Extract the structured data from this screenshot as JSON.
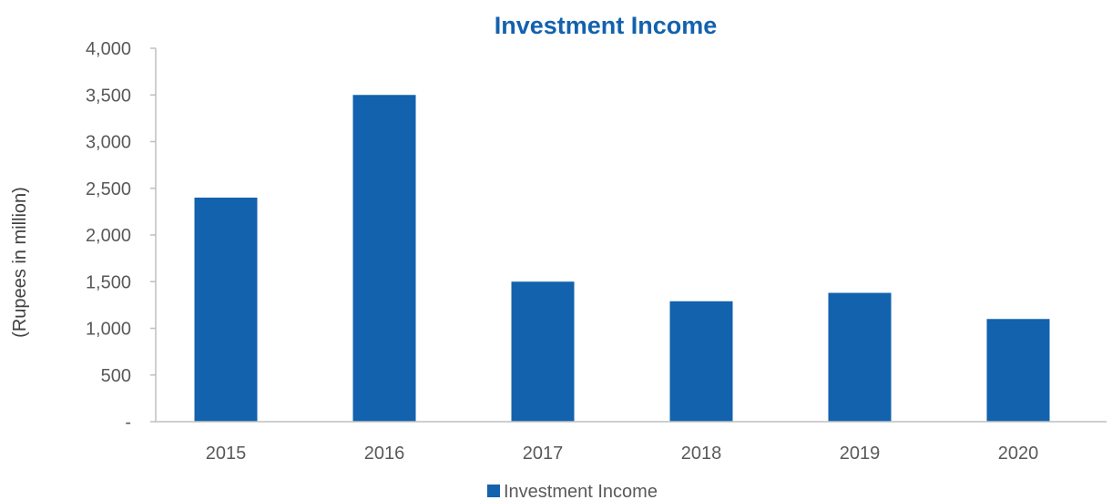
{
  "chart_data": {
    "type": "bar",
    "title": "Investment Income",
    "xlabel": "",
    "ylabel": "(Rupees in million)",
    "categories": [
      "2015",
      "2016",
      "2017",
      "2018",
      "2019",
      "2020"
    ],
    "series": [
      {
        "name": "Investment Income",
        "values": [
          2400,
          3500,
          1500,
          1290,
          1380,
          1100
        ],
        "color": "#1262AE"
      }
    ],
    "ylim": [
      0,
      4000
    ],
    "yticks": [
      0,
      500,
      1000,
      1500,
      2000,
      2500,
      3000,
      3500,
      4000
    ],
    "ytick_labels": [
      "-",
      "500",
      "1,000",
      "1,500",
      "2,000",
      "2,500",
      "3,000",
      "3,500",
      "4,000"
    ],
    "grid": false,
    "legend_position": "bottom",
    "colors": {
      "title": "#1262AE",
      "axis": "#BFBFBF"
    }
  }
}
